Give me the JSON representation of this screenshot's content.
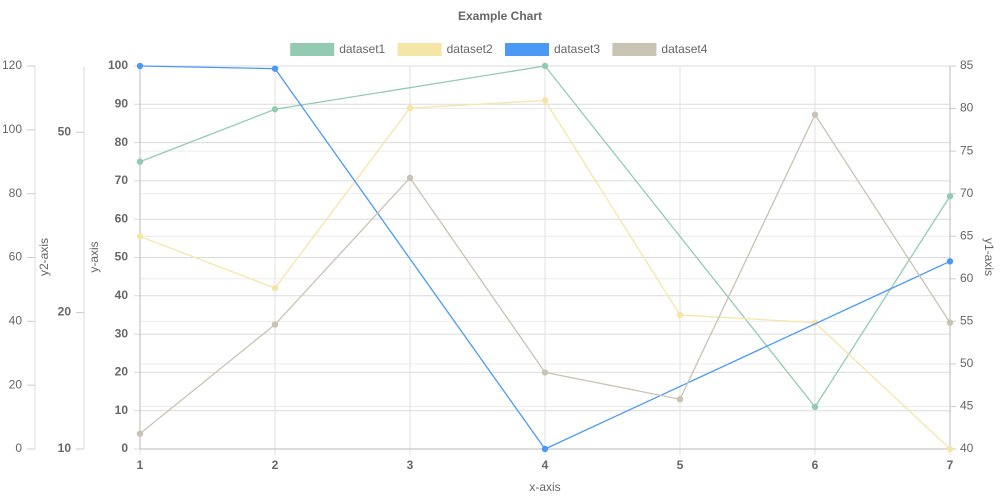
{
  "chart_data": {
    "type": "line",
    "title": "Example Chart",
    "x_label": "x-axis",
    "x": [
      1,
      2,
      3,
      4,
      5,
      6,
      7
    ],
    "xlim": [
      1,
      7
    ],
    "xticks": [
      1,
      2,
      3,
      4,
      5,
      6,
      7
    ],
    "y_label": "y-axis",
    "ylim": [
      0,
      100
    ],
    "yticks": [
      0,
      10,
      20,
      30,
      40,
      50,
      60,
      70,
      80,
      90,
      100
    ],
    "y1_label": "y1-axis",
    "y1lim": [
      40,
      85
    ],
    "y1ticks": [
      40,
      45,
      50,
      55,
      60,
      65,
      70,
      75,
      80,
      85
    ],
    "y2_label": "y2-axis",
    "y2lim": [
      10,
      70
    ],
    "y2ticks": [
      10,
      20,
      50
    ],
    "y2_log": true,
    "y3lim": [
      0,
      120
    ],
    "y3ticks": [
      0,
      20,
      40,
      60,
      80,
      100,
      120
    ],
    "grid": true,
    "span_gaps": true,
    "legend": "top",
    "series": [
      {
        "name": "dataset1",
        "color": "#93cbb2",
        "values": [
          75,
          88.7,
          null,
          100,
          null,
          11,
          66
        ]
      },
      {
        "name": "dataset2",
        "color": "#f5e6a8",
        "values": [
          55.5,
          42,
          89,
          91,
          35,
          33,
          0
        ]
      },
      {
        "name": "dataset3",
        "color": "#4a9af5",
        "values": [
          100,
          99.3,
          null,
          0,
          null,
          null,
          49
        ]
      },
      {
        "name": "dataset4",
        "color": "#c9c3b4",
        "values": [
          4,
          32.5,
          70.8,
          20,
          13,
          87.3,
          33
        ]
      }
    ]
  }
}
